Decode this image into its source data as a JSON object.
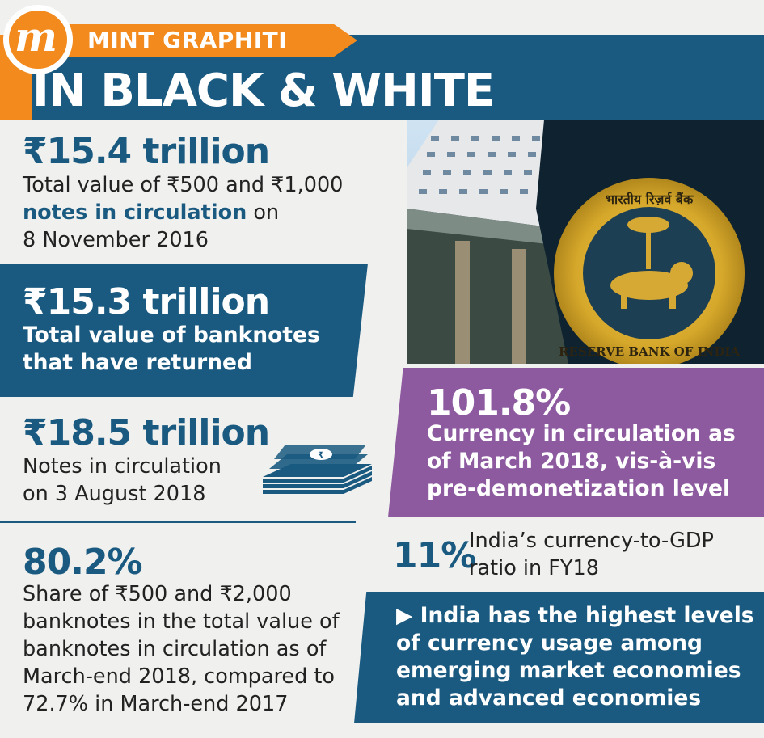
{
  "header": {
    "brand_tag": "MINT GRAPHITI",
    "logo_letter": "m",
    "title": "IN BLACK & WHITE"
  },
  "stats": [
    {
      "value": "₹15.4 trillion",
      "desc_part1": "Total value of ₹500 and ₹1,000",
      "desc_bold": "notes in circulation",
      "desc_part2": " on",
      "desc_part3": "8 November 2016"
    },
    {
      "value": "₹15.3 trillion",
      "line1": "Total value of banknotes",
      "line2": "that have returned"
    },
    {
      "value": "₹18.5 trillion",
      "line1": "Notes in circulation",
      "line2": "on 3 August 2018"
    },
    {
      "value": "80.2%",
      "line1": "Share of ₹500 and ₹2,000",
      "line2": "banknotes in the total value of",
      "line3": "banknotes in circulation as of",
      "line4": "March-end 2018, compared to",
      "line5": "72.7% in March-end 2017"
    }
  ],
  "photo": {
    "seal_text_top": "भारतीय रिज़र्व बैंक",
    "seal_text_bottom": "RESERVE BANK OF INDIA"
  },
  "purple_box": {
    "value": "101.8%",
    "line1": "Currency in circulation as",
    "line2": "of March 2018, vis-à-vis",
    "line3": "pre-demonetization level"
  },
  "ratio": {
    "value": "11%",
    "line1": "India’s currency-to-GDP",
    "line2": "ratio in FY18"
  },
  "conclusion": {
    "arrow": "▶",
    "line1": "India has the highest levels",
    "line2": "of currency usage among",
    "line3": "emerging market economies",
    "line4": "and advanced economies"
  },
  "colors": {
    "navy": "#1a5a80",
    "orange": "#f28a1e",
    "purple": "#8d5aa0",
    "background": "#f0f0ee"
  },
  "icons": [
    "money-stack-icon",
    "rbi-seal-icon"
  ]
}
